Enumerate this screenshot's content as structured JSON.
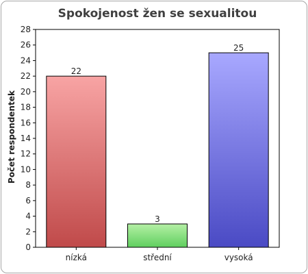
{
  "chart_data": {
    "type": "bar",
    "title": "Spokojenost žen se sexualitou",
    "xlabel": "",
    "ylabel": "Počet respondentek",
    "categories": [
      "nízká",
      "střední",
      "vysoká"
    ],
    "values": [
      22,
      3,
      25
    ],
    "ylim": [
      0,
      28
    ],
    "yticks": [
      0,
      2,
      4,
      6,
      8,
      10,
      12,
      14,
      16,
      18,
      20,
      22,
      24,
      26,
      28
    ],
    "grid": false,
    "legend": "none",
    "bar_colors": [
      {
        "top": "#f8a4a4",
        "bottom": "#c04a4a"
      },
      {
        "top": "#b5f0a5",
        "bottom": "#5fcf5f"
      },
      {
        "top": "#a8a8ff",
        "bottom": "#4a4ac4"
      }
    ]
  }
}
